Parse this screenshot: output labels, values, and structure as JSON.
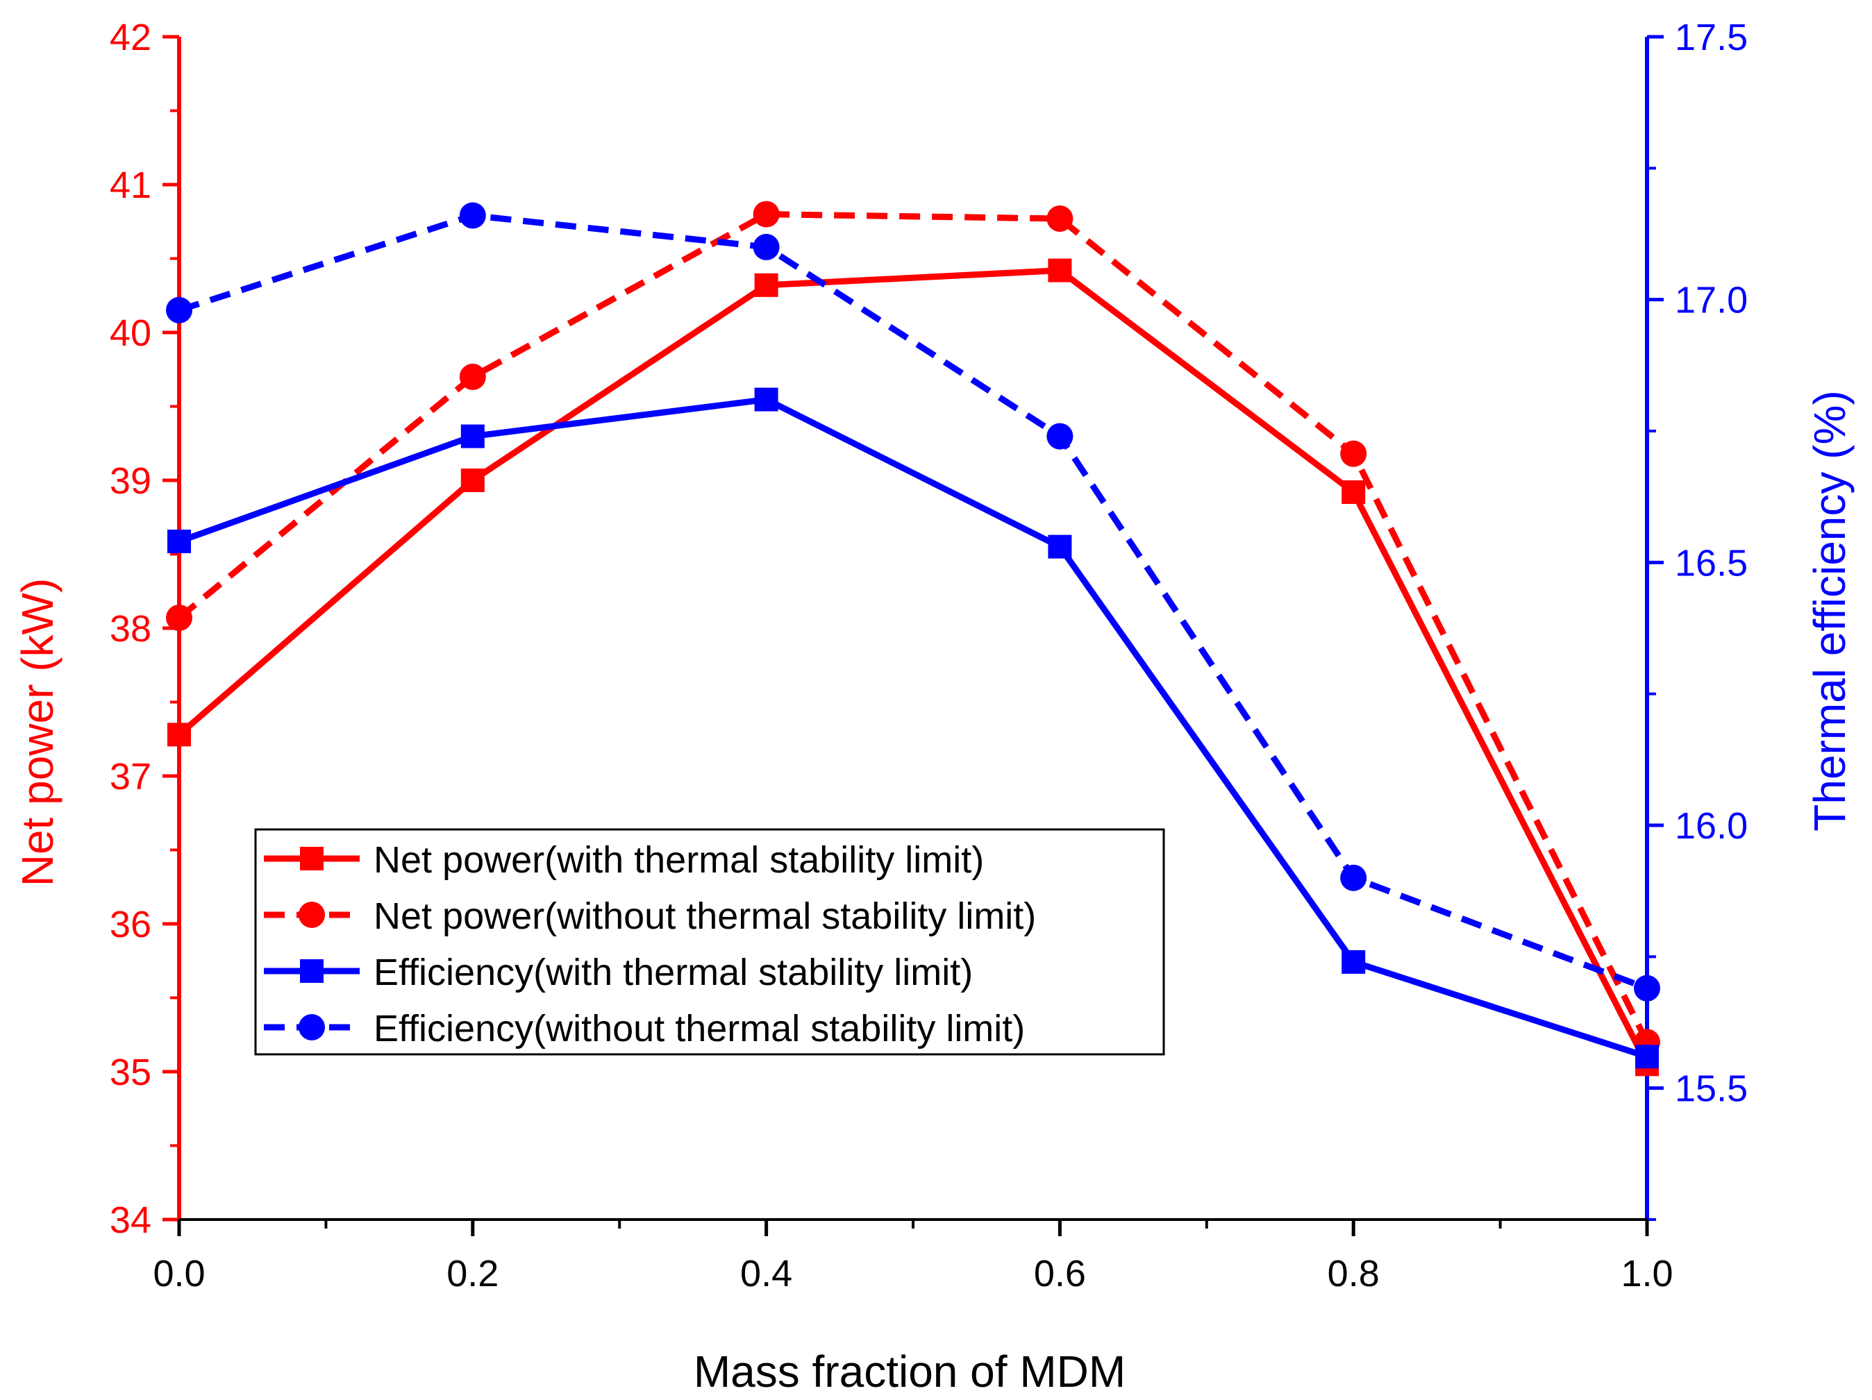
{
  "chart_data": {
    "type": "line",
    "title": "",
    "xlabel": "Mass fraction of MDM",
    "ylabel": "Net power (kW)",
    "y2label": "Thermal efficiency (%)",
    "x": [
      0.0,
      0.2,
      0.4,
      0.6,
      0.8,
      1.0
    ],
    "xlim": [
      0.0,
      1.0
    ],
    "ylim": [
      34,
      42
    ],
    "y2lim": [
      15.25,
      17.5
    ],
    "x_ticks": [
      "0.0",
      "0.2",
      "0.4",
      "0.6",
      "0.8",
      "1.0"
    ],
    "y_ticks": [
      "34",
      "35",
      "36",
      "37",
      "38",
      "39",
      "40",
      "41",
      "42"
    ],
    "y2_ticks": [
      "15.5",
      "16.0",
      "16.5",
      "17.0",
      "17.5"
    ],
    "legend_position": "lower-left",
    "series": [
      {
        "name": "Net power(with thermal stability limit)",
        "axis": "left",
        "color": "#ff0000",
        "dash": "solid",
        "marker": "square",
        "values": [
          37.28,
          39.0,
          40.32,
          40.42,
          38.92,
          35.05
        ]
      },
      {
        "name": "Net power(without thermal stability limit)",
        "axis": "left",
        "color": "#ff0000",
        "dash": "dashed",
        "marker": "circle",
        "values": [
          38.07,
          39.7,
          40.8,
          40.77,
          39.18,
          35.2
        ]
      },
      {
        "name": "Efficiency(with thermal stability limit)",
        "axis": "right",
        "color": "#0000ff",
        "dash": "solid",
        "marker": "square",
        "values": [
          16.54,
          16.74,
          16.81,
          16.53,
          15.74,
          15.56
        ]
      },
      {
        "name": "Efficiency(without thermal stability limit)",
        "axis": "right",
        "color": "#0000ff",
        "dash": "dashed",
        "marker": "circle",
        "values": [
          16.98,
          17.16,
          17.1,
          16.74,
          15.9,
          15.69
        ]
      }
    ],
    "colors": {
      "left_axis": "#ff0000",
      "right_axis": "#0000ff",
      "bottom_axis": "#000000"
    }
  }
}
